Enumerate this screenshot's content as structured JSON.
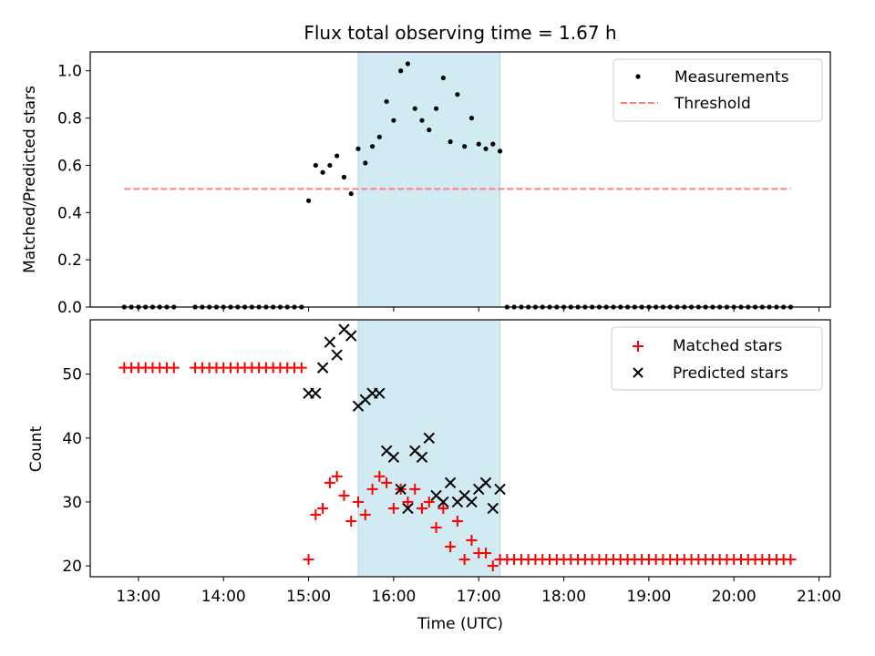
{
  "title": "Flux total observing time = 1.67 h",
  "chart_data": [
    {
      "type": "scatter",
      "panel": "top",
      "ylabel": "Matched/Predicted stars",
      "xlabel": "",
      "xlim": [
        "12:26",
        "21:08"
      ],
      "ylim": [
        0,
        1.08
      ],
      "yticks": [
        0.0,
        0.2,
        0.4,
        0.6,
        0.8,
        1.0
      ],
      "ytick_labels": [
        "0.0",
        "0.2",
        "0.4",
        "0.6",
        "0.8",
        "1.0"
      ],
      "grid": false,
      "legend_position": "upper right",
      "shaded_span": {
        "start": "15:35",
        "end": "17:15",
        "color": "#add8e6"
      },
      "series": [
        {
          "name": "Measurements",
          "kind": "points",
          "color": "#000000",
          "x": [
            "12:50",
            "12:55",
            "13:00",
            "13:05",
            "13:10",
            "13:15",
            "13:20",
            "13:25",
            "13:40",
            "13:45",
            "13:50",
            "13:55",
            "14:00",
            "14:05",
            "14:10",
            "14:15",
            "14:20",
            "14:25",
            "14:30",
            "14:35",
            "14:40",
            "14:45",
            "14:50",
            "14:55",
            "15:00",
            "15:05",
            "15:10",
            "15:15",
            "15:20",
            "15:25",
            "15:30",
            "15:35",
            "15:40",
            "15:45",
            "15:50",
            "15:55",
            "16:00",
            "16:05",
            "16:10",
            "16:15",
            "16:20",
            "16:25",
            "16:30",
            "16:35",
            "16:40",
            "16:45",
            "16:50",
            "16:55",
            "17:00",
            "17:05",
            "17:10",
            "17:15",
            "17:20",
            "17:25",
            "17:30",
            "17:35",
            "17:40",
            "17:45",
            "17:50",
            "17:55",
            "18:00",
            "18:05",
            "18:10",
            "18:15",
            "18:20",
            "18:25",
            "18:30",
            "18:35",
            "18:40",
            "18:45",
            "18:50",
            "18:55",
            "19:00",
            "19:05",
            "19:10",
            "19:15",
            "19:20",
            "19:25",
            "19:30",
            "19:35",
            "19:40",
            "19:45",
            "19:50",
            "19:55",
            "20:00",
            "20:05",
            "20:10",
            "20:15",
            "20:20",
            "20:25",
            "20:30",
            "20:35",
            "20:40"
          ],
          "y": [
            0,
            0,
            0,
            0,
            0,
            0,
            0,
            0,
            0,
            0,
            0,
            0,
            0,
            0,
            0,
            0,
            0,
            0,
            0,
            0,
            0,
            0,
            0,
            0,
            0.45,
            0.6,
            0.57,
            0.6,
            0.64,
            0.55,
            0.48,
            0.67,
            0.61,
            0.68,
            0.72,
            0.87,
            0.79,
            1.0,
            1.03,
            0.84,
            0.79,
            0.75,
            0.84,
            0.97,
            0.7,
            0.9,
            0.68,
            0.8,
            0.69,
            0.67,
            0.69,
            0.66,
            0,
            0,
            0,
            0,
            0,
            0,
            0,
            0,
            0,
            0,
            0,
            0,
            0,
            0,
            0,
            0,
            0,
            0,
            0,
            0,
            0,
            0,
            0,
            0,
            0,
            0,
            0,
            0,
            0,
            0,
            0,
            0,
            0,
            0,
            0,
            0,
            0,
            0,
            0,
            0,
            0
          ]
        },
        {
          "name": "Threshold",
          "kind": "dashed-line",
          "color": "#ff7f7f",
          "x": [
            "12:50",
            "20:40"
          ],
          "y": [
            0.5,
            0.5
          ]
        }
      ]
    },
    {
      "type": "scatter",
      "panel": "bottom",
      "ylabel": "Count",
      "xlabel": "Time (UTC)",
      "xlim": [
        "12:26",
        "21:08"
      ],
      "ylim": [
        18.3,
        58.5
      ],
      "yticks": [
        20,
        30,
        40,
        50
      ],
      "ytick_labels": [
        "20",
        "30",
        "40",
        "50"
      ],
      "xticks": [
        "13:00",
        "14:00",
        "15:00",
        "16:00",
        "17:00",
        "18:00",
        "19:00",
        "20:00",
        "21:00"
      ],
      "xtick_labels": [
        "13:00",
        "14:00",
        "15:00",
        "16:00",
        "17:00",
        "18:00",
        "19:00",
        "20:00",
        "21:00"
      ],
      "grid": false,
      "legend_position": "upper right",
      "shaded_span": {
        "start": "15:35",
        "end": "17:15",
        "color": "#add8e6"
      },
      "series": [
        {
          "name": "Matched stars",
          "kind": "plus",
          "color": "#ff0000",
          "x": [
            "12:50",
            "12:55",
            "13:00",
            "13:05",
            "13:10",
            "13:15",
            "13:20",
            "13:25",
            "13:40",
            "13:45",
            "13:50",
            "13:55",
            "14:00",
            "14:05",
            "14:10",
            "14:15",
            "14:20",
            "14:25",
            "14:30",
            "14:35",
            "14:40",
            "14:45",
            "14:50",
            "14:55",
            "15:00",
            "15:05",
            "15:10",
            "15:15",
            "15:20",
            "15:25",
            "15:30",
            "15:35",
            "15:40",
            "15:45",
            "15:50",
            "15:55",
            "16:00",
            "16:05",
            "16:10",
            "16:15",
            "16:20",
            "16:25",
            "16:30",
            "16:35",
            "16:40",
            "16:45",
            "16:50",
            "16:55",
            "17:00",
            "17:05",
            "17:10",
            "17:15",
            "17:20",
            "17:25",
            "17:30",
            "17:35",
            "17:40",
            "17:45",
            "17:50",
            "17:55",
            "18:00",
            "18:05",
            "18:10",
            "18:15",
            "18:20",
            "18:25",
            "18:30",
            "18:35",
            "18:40",
            "18:45",
            "18:50",
            "18:55",
            "19:00",
            "19:05",
            "19:10",
            "19:15",
            "19:20",
            "19:25",
            "19:30",
            "19:35",
            "19:40",
            "19:45",
            "19:50",
            "19:55",
            "20:00",
            "20:05",
            "20:10",
            "20:15",
            "20:20",
            "20:25",
            "20:30",
            "20:35",
            "20:40"
          ],
          "y": [
            51,
            51,
            51,
            51,
            51,
            51,
            51,
            51,
            51,
            51,
            51,
            51,
            51,
            51,
            51,
            51,
            51,
            51,
            51,
            51,
            51,
            51,
            51,
            51,
            21,
            28,
            29,
            33,
            34,
            31,
            27,
            30,
            28,
            32,
            34,
            33,
            29,
            32,
            30,
            32,
            29,
            30,
            26,
            29,
            23,
            27,
            21,
            24,
            22,
            22,
            20,
            21,
            21,
            21,
            21,
            21,
            21,
            21,
            21,
            21,
            21,
            21,
            21,
            21,
            21,
            21,
            21,
            21,
            21,
            21,
            21,
            21,
            21,
            21,
            21,
            21,
            21,
            21,
            21,
            21,
            21,
            21,
            21,
            21,
            21,
            21,
            21,
            21,
            21,
            21,
            21,
            21,
            21
          ]
        },
        {
          "name": "Predicted stars",
          "kind": "cross",
          "color": "#000000",
          "x": [
            "15:00",
            "15:05",
            "15:10",
            "15:15",
            "15:20",
            "15:25",
            "15:30",
            "15:35",
            "15:40",
            "15:45",
            "15:50",
            "15:55",
            "16:00",
            "16:05",
            "16:10",
            "16:15",
            "16:20",
            "16:25",
            "16:30",
            "16:35",
            "16:40",
            "16:45",
            "16:50",
            "16:55",
            "17:00",
            "17:05",
            "17:10",
            "17:15"
          ],
          "y": [
            47,
            47,
            51,
            55,
            53,
            57,
            56,
            45,
            46,
            47,
            47,
            38,
            37,
            32,
            29,
            38,
            37,
            40,
            31,
            30,
            33,
            30,
            31,
            30,
            32,
            33,
            29,
            32
          ]
        }
      ]
    }
  ]
}
